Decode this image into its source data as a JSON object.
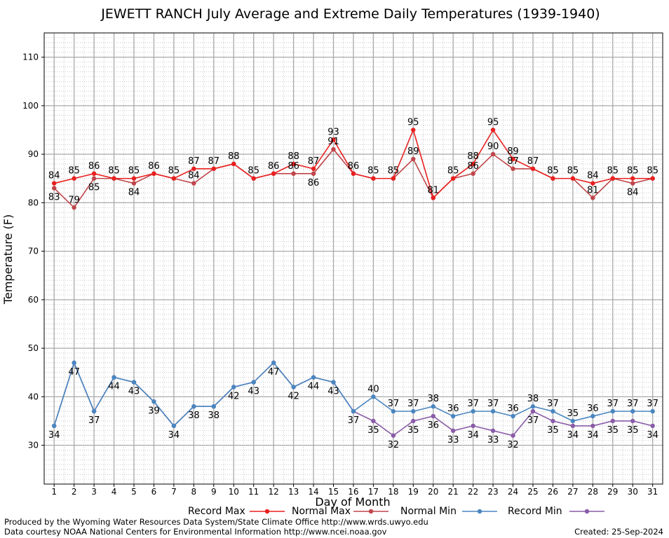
{
  "chart_data": {
    "type": "line",
    "title": "JEWETT RANCH July Average and Extreme Daily Temperatures (1939-1940)",
    "xlabel": "Day of Month",
    "ylabel": "Temperature (F)",
    "ylim": [
      22,
      115
    ],
    "yticks": [
      30,
      40,
      50,
      60,
      70,
      80,
      90,
      100,
      110
    ],
    "grid": true,
    "legend_position": "bottom",
    "x": [
      1,
      2,
      3,
      4,
      5,
      6,
      7,
      8,
      9,
      10,
      11,
      12,
      13,
      14,
      15,
      16,
      17,
      18,
      19,
      20,
      21,
      22,
      23,
      24,
      25,
      26,
      27,
      28,
      29,
      30,
      31
    ],
    "series": [
      {
        "name": "Record Max",
        "color": "#e8201f",
        "values": [
          84,
          85,
          86,
          85,
          85,
          86,
          85,
          87,
          87,
          88,
          85,
          86,
          88,
          87,
          93,
          86,
          85,
          85,
          95,
          81,
          85,
          88,
          95,
          89,
          87,
          85,
          85,
          84,
          85,
          85,
          85
        ]
      },
      {
        "name": "Normal Max",
        "color": "#c0454a",
        "values": [
          83,
          79,
          85,
          85,
          84,
          86,
          85,
          84,
          87,
          88,
          85,
          86,
          86,
          86,
          91,
          86,
          85,
          85,
          89,
          81,
          85,
          86,
          90,
          87,
          87,
          85,
          85,
          81,
          85,
          84,
          85
        ]
      },
      {
        "name": "Normal Min",
        "color": "#4a86c0",
        "values": [
          34,
          47,
          37,
          44,
          43,
          39,
          34,
          38,
          38,
          42,
          43,
          47,
          42,
          44,
          43,
          37,
          40,
          37,
          37,
          38,
          36,
          37,
          37,
          36,
          38,
          37,
          35,
          36,
          37,
          37,
          37
        ]
      },
      {
        "name": "Record Min",
        "color": "#8a5ca8",
        "values": [
          34,
          47,
          37,
          44,
          43,
          39,
          34,
          38,
          38,
          42,
          43,
          47,
          42,
          44,
          43,
          37,
          35,
          32,
          35,
          36,
          33,
          34,
          33,
          32,
          37,
          35,
          34,
          34,
          35,
          35,
          34
        ]
      }
    ]
  },
  "footer": {
    "produced_by": "Produced by the Wyoming Water Resources Data System/State Climate Office http://www.wrds.uwyo.edu",
    "courtesy": "Data courtesy NOAA National Centers for Environmental Information http://www.ncei.noaa.gov",
    "created": "Created:  25-Sep-2024"
  }
}
